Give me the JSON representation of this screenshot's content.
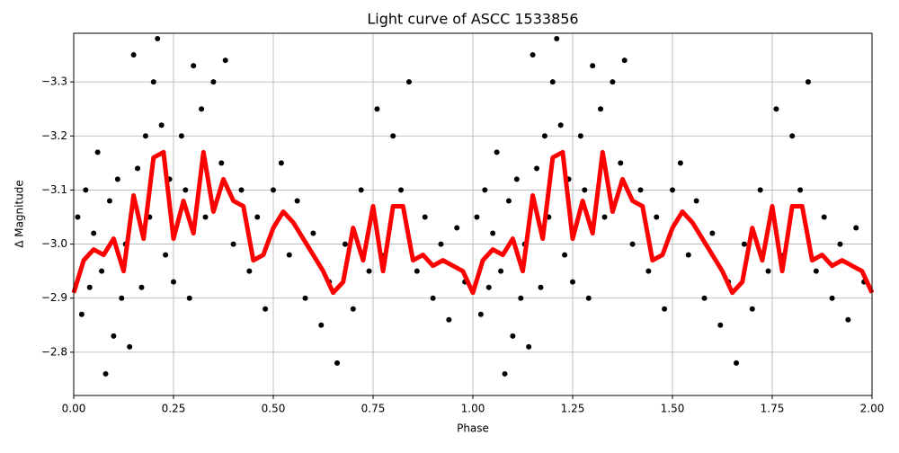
{
  "chart_data": {
    "type": "scatter",
    "title": "Light curve of ASCC 1533856",
    "x_label": "Phase",
    "y_label": "Δ Magnitude",
    "xlim": [
      0,
      2
    ],
    "ylim": [
      -2.72,
      -3.39
    ],
    "xticks": [
      {
        "value": 0,
        "label": "0.00"
      },
      {
        "value": 0.25,
        "label": "0.25"
      },
      {
        "value": 0.5,
        "label": "0.50"
      },
      {
        "value": 0.75,
        "label": "0.75"
      },
      {
        "value": 1,
        "label": "1.00"
      },
      {
        "value": 1.25,
        "label": "1.25"
      },
      {
        "value": 1.5,
        "label": "1.50"
      },
      {
        "value": 1.75,
        "label": "1.75"
      },
      {
        "value": 2,
        "label": "2.00"
      }
    ],
    "yticks": [
      {
        "value": -3.3,
        "label": "−3.3"
      },
      {
        "value": -3.2,
        "label": "−3.2"
      },
      {
        "value": -3.1,
        "label": "−3.1"
      },
      {
        "value": -3.0,
        "label": "−3.0"
      },
      {
        "value": -2.9,
        "label": "−2.9"
      },
      {
        "value": -2.8,
        "label": "−2.8"
      }
    ],
    "grid": true,
    "series": [
      {
        "color": "#000000",
        "mode": "points",
        "x": [
          0.01,
          0.02,
          0.03,
          0.04,
          0.05,
          0.06,
          0.07,
          0.08,
          0.09,
          0.1,
          0.11,
          0.12,
          0.13,
          0.14,
          0.15,
          0.16,
          0.17,
          0.18,
          0.19,
          0.2,
          0.21,
          0.22,
          0.23,
          0.24,
          0.25,
          0.27,
          0.28,
          0.29,
          0.3,
          0.32,
          0.33,
          0.35,
          0.37,
          0.38,
          0.4,
          0.42,
          0.44,
          0.46,
          0.48,
          0.5,
          0.52,
          0.54,
          0.56,
          0.58,
          0.6,
          0.62,
          0.64,
          0.66,
          0.68,
          0.7,
          0.72,
          0.74,
          0.76,
          0.78,
          0.8,
          0.82,
          0.84,
          0.86,
          0.88,
          0.9,
          0.92,
          0.94,
          0.96,
          0.98,
          1.01,
          1.02,
          1.03,
          1.04,
          1.05,
          1.06,
          1.07,
          1.08,
          1.09,
          1.1,
          1.11,
          1.12,
          1.13,
          1.14,
          1.15,
          1.16,
          1.17,
          1.18,
          1.19,
          1.2,
          1.21,
          1.22,
          1.23,
          1.24,
          1.25,
          1.27,
          1.28,
          1.29,
          1.3,
          1.32,
          1.33,
          1.35,
          1.37,
          1.38,
          1.4,
          1.42,
          1.44,
          1.46,
          1.48,
          1.5,
          1.52,
          1.54,
          1.56,
          1.58,
          1.6,
          1.62,
          1.64,
          1.66,
          1.68,
          1.7,
          1.72,
          1.74,
          1.76,
          1.78,
          1.8,
          1.82,
          1.84,
          1.86,
          1.88,
          1.9,
          1.92,
          1.94,
          1.96,
          1.98
        ],
        "values": [
          -3.05,
          -2.87,
          -3.1,
          -2.92,
          -3.02,
          -3.17,
          -2.95,
          -2.76,
          -3.08,
          -2.83,
          -3.12,
          -2.9,
          -3.0,
          -2.81,
          -3.35,
          -3.14,
          -2.92,
          -3.2,
          -3.05,
          -3.3,
          -3.38,
          -3.22,
          -2.98,
          -3.12,
          -2.93,
          -3.2,
          -3.1,
          -2.9,
          -3.33,
          -3.25,
          -3.05,
          -3.3,
          -3.15,
          -3.34,
          -3.0,
          -3.1,
          -2.95,
          -3.05,
          -2.88,
          -3.1,
          -3.15,
          -2.98,
          -3.08,
          -2.9,
          -3.02,
          -2.85,
          -2.93,
          -2.78,
          -3.0,
          -2.88,
          -3.1,
          -2.95,
          -3.25,
          -2.98,
          -3.2,
          -3.1,
          -3.3,
          -2.95,
          -3.05,
          -2.9,
          -3.0,
          -2.86,
          -3.03,
          -2.93,
          -3.05,
          -2.87,
          -3.1,
          -2.92,
          -3.02,
          -3.17,
          -2.95,
          -2.76,
          -3.08,
          -2.83,
          -3.12,
          -2.9,
          -3.0,
          -2.81,
          -3.35,
          -3.14,
          -2.92,
          -3.2,
          -3.05,
          -3.3,
          -3.38,
          -3.22,
          -2.98,
          -3.12,
          -2.93,
          -3.2,
          -3.1,
          -2.9,
          -3.33,
          -3.25,
          -3.05,
          -3.3,
          -3.15,
          -3.34,
          -3.0,
          -3.1,
          -2.95,
          -3.05,
          -2.88,
          -3.1,
          -3.15,
          -2.98,
          -3.08,
          -2.9,
          -3.02,
          -2.85,
          -2.93,
          -2.78,
          -3.0,
          -2.88,
          -3.1,
          -2.95,
          -3.25,
          -2.98,
          -3.2,
          -3.1,
          -3.3,
          -2.95,
          -3.05,
          -2.9,
          -3.0,
          -2.86,
          -3.03,
          -2.93
        ]
      },
      {
        "color": "#ff0000",
        "mode": "line",
        "x": [
          0,
          0.025,
          0.05,
          0.075,
          0.1,
          0.125,
          0.15,
          0.175,
          0.2,
          0.225,
          0.25,
          0.275,
          0.3,
          0.325,
          0.35,
          0.375,
          0.4,
          0.425,
          0.45,
          0.475,
          0.5,
          0.525,
          0.55,
          0.575,
          0.6,
          0.625,
          0.65,
          0.675,
          0.7,
          0.725,
          0.75,
          0.775,
          0.8,
          0.825,
          0.85,
          0.875,
          0.9,
          0.925,
          0.95,
          0.975,
          1.0,
          1.025,
          1.05,
          1.075,
          1.1,
          1.125,
          1.15,
          1.175,
          1.2,
          1.225,
          1.25,
          1.275,
          1.3,
          1.325,
          1.35,
          1.375,
          1.4,
          1.425,
          1.45,
          1.475,
          1.5,
          1.525,
          1.55,
          1.575,
          1.6,
          1.625,
          1.65,
          1.675,
          1.7,
          1.725,
          1.75,
          1.775,
          1.8,
          1.825,
          1.85,
          1.875,
          1.9,
          1.925,
          1.95,
          1.975,
          2.0
        ],
        "values": [
          -2.91,
          -2.97,
          -2.99,
          -2.98,
          -3.01,
          -2.95,
          -3.09,
          -3.01,
          -3.16,
          -3.17,
          -3.01,
          -3.08,
          -3.02,
          -3.17,
          -3.06,
          -3.12,
          -3.08,
          -3.07,
          -2.97,
          -2.98,
          -3.03,
          -3.06,
          -3.04,
          -3.01,
          -2.98,
          -2.95,
          -2.91,
          -2.93,
          -3.03,
          -2.97,
          -3.07,
          -2.95,
          -3.07,
          -3.07,
          -2.97,
          -2.98,
          -2.96,
          -2.97,
          -2.96,
          -2.95,
          -2.91,
          -2.97,
          -2.99,
          -2.98,
          -3.01,
          -2.95,
          -3.09,
          -3.01,
          -3.16,
          -3.17,
          -3.01,
          -3.08,
          -3.02,
          -3.17,
          -3.06,
          -3.12,
          -3.08,
          -3.07,
          -2.97,
          -2.98,
          -3.03,
          -3.06,
          -3.04,
          -3.01,
          -2.98,
          -2.95,
          -2.91,
          -2.93,
          -3.03,
          -2.97,
          -3.07,
          -2.95,
          -3.07,
          -3.07,
          -2.97,
          -2.98,
          -2.96,
          -2.97,
          -2.96,
          -2.95,
          -2.91
        ]
      }
    ]
  }
}
